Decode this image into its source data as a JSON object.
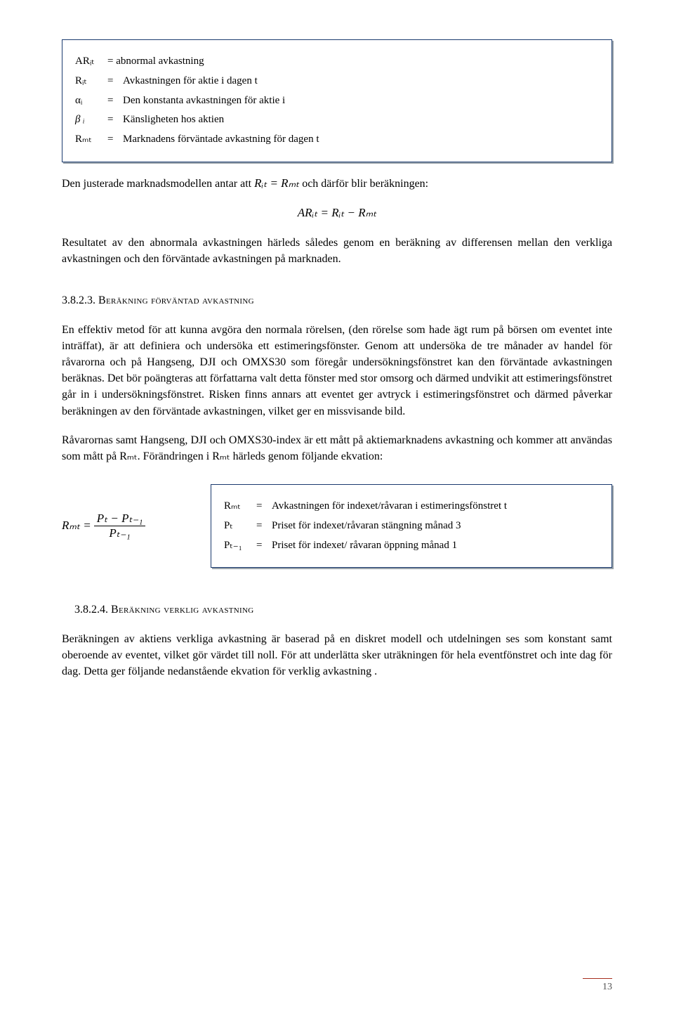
{
  "box1": {
    "r1": {
      "sym": "ARᵢₜ",
      "def": "= abnormal avkastning"
    },
    "r2": {
      "sym": "Rᵢₜ",
      "eq": "=",
      "def": "Avkastningen för aktie i dagen t"
    },
    "r3": {
      "sym": "αᵢ",
      "eq": "=",
      "def": "Den konstanta avkastningen för aktie i"
    },
    "r4": {
      "sym": "β ᵢ",
      "eq": "=",
      "def": "Känsligheten hos aktien"
    },
    "r5": {
      "sym": "Rₘₜ",
      "eq": "=",
      "def": "Marknadens förväntade avkastning för dagen t"
    }
  },
  "p1_a": "Den justerade marknadsmodellen antar att  ",
  "p1_f": "Rᵢₜ = Rₘₜ",
  "p1_b": "  och därför blir beräkningen:",
  "eq1": "ARᵢₜ = Rᵢₜ − Rₘₜ",
  "p2": "Resultatet av den abnormala avkastningen härleds således genom en beräkning av differensen mellan den verkliga avkastningen och den förväntade avkastningen på marknaden.",
  "h1_num": "3.8.2.3. ",
  "h1_txt": "Beräkning förväntad avkastning",
  "p3": "En effektiv metod för att kunna avgöra den normala rörelsen, (den rörelse som hade ägt rum på börsen om eventet inte inträffat), är att definiera och undersöka ett estimeringsfönster. Genom att undersöka de tre månader av handel för råvarorna och på Hangseng, DJI och OMXS30 som föregår undersökningsfönstret kan den förväntade avkastningen beräknas. Det bör poängteras att författarna valt detta fönster med stor omsorg och därmed undvikit att estimeringsfönstret går in i undersökningsfönstret. Risken finns annars att eventet ger avtryck i estimeringsfönstret och därmed påverkar beräkningen av den förväntade avkastningen, vilket ger en missvisande bild.",
  "p4": "Råvarornas samt Hangseng, DJI och OMXS30-index är ett mått på aktiemarknadens avkastning och kommer att användas som mått på Rₘₜ. Förändringen i Rₘₜ härleds genom följande ekvation:",
  "eq2": {
    "lhs": "Rₘₜ =",
    "num": "Pₜ − Pₜ₋₁",
    "den": "Pₜ₋₁"
  },
  "box2": {
    "r1": {
      "sym": "Rₘₜ",
      "eq": "=",
      "def": "Avkastningen för indexet/råvaran i estimeringsfönstret t"
    },
    "r2": {
      "sym": "Pₜ",
      "eq": "=",
      "def": "Priset för indexet/råvaran stängning månad 3"
    },
    "r3": {
      "sym": "Pₜ₋₁",
      "eq": "=",
      "def": "Priset för indexet/ råvaran öppning månad 1"
    }
  },
  "h2_num": "3.8.2.4. ",
  "h2_txt": "Beräkning verklig avkastning",
  "p5": "Beräkningen av aktiens verkliga avkastning är baserad på en diskret modell och utdelningen ses som konstant samt oberoende av eventet, vilket gör värdet till noll. För att underlätta sker uträkningen för hela eventfönstret och inte dag för dag. Detta ger följande nedanstående ekvation för verklig avkastning .",
  "page": "13"
}
